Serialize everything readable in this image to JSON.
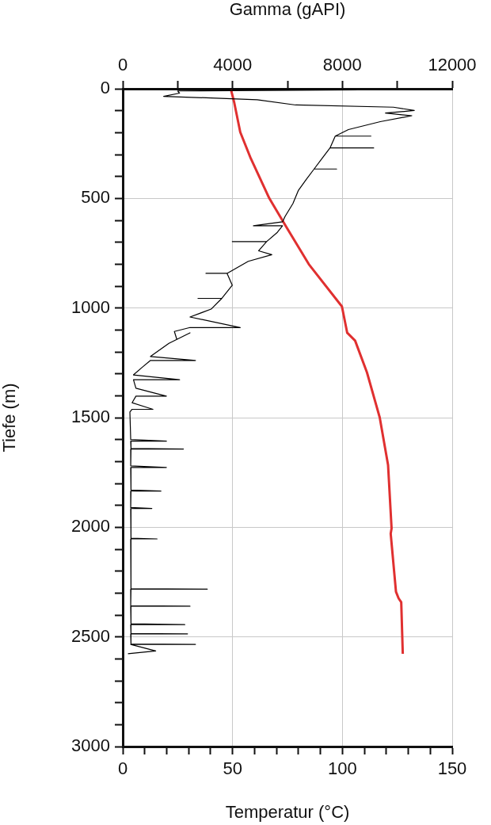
{
  "chart_data": {
    "type": "line",
    "xlabel": "Temperatur (°C)",
    "x2label": "Gamma (gAPI)",
    "ylabel": "Tiefe (m)",
    "xlim": [
      0,
      150
    ],
    "xticks": [
      0,
      {
        "value": 10,
        "label": null
      },
      {
        "value": 20,
        "label": null
      },
      {
        "value": 30,
        "label": null
      },
      {
        "value": 40,
        "label": null
      },
      50,
      {
        "value": 60,
        "label": null
      },
      {
        "value": 70,
        "label": null
      },
      {
        "value": 80,
        "label": null
      },
      {
        "value": 90,
        "label": null
      },
      100,
      {
        "value": 110,
        "label": null
      },
      {
        "value": 120,
        "label": null
      },
      {
        "value": 130,
        "label": null
      },
      {
        "value": 140,
        "label": null
      },
      150
    ],
    "x2lim": [
      0,
      12000
    ],
    "x2ticks": [
      0,
      {
        "value": 2000,
        "label": null
      },
      4000,
      {
        "value": 6000,
        "label": null
      },
      8000,
      {
        "value": 10000,
        "label": null
      },
      12000
    ],
    "ylim": [
      3000,
      0
    ],
    "yticks": [
      0,
      {
        "value": 100,
        "label": null
      },
      {
        "value": 200,
        "label": null
      },
      {
        "value": 300,
        "label": null
      },
      {
        "value": 400,
        "label": null
      },
      500,
      {
        "value": 600,
        "label": null
      },
      {
        "value": 700,
        "label": null
      },
      {
        "value": 800,
        "label": null
      },
      {
        "value": 900,
        "label": null
      },
      1000,
      {
        "value": 1100,
        "label": null
      },
      {
        "value": 1200,
        "label": null
      },
      {
        "value": 1300,
        "label": null
      },
      {
        "value": 1400,
        "label": null
      },
      1500,
      {
        "value": 1600,
        "label": null
      },
      {
        "value": 1700,
        "label": null
      },
      {
        "value": 1800,
        "label": null
      },
      {
        "value": 1900,
        "label": null
      },
      2000,
      {
        "value": 2100,
        "label": null
      },
      {
        "value": 2200,
        "label": null
      },
      {
        "value": 2300,
        "label": null
      },
      {
        "value": 2400,
        "label": null
      },
      2500,
      {
        "value": 2600,
        "label": null
      },
      {
        "value": 2700,
        "label": null
      },
      {
        "value": 2800,
        "label": null
      },
      {
        "value": 2900,
        "label": null
      },
      3000
    ],
    "grid": true,
    "series": [
      {
        "color": "#000000",
        "axis": "x2",
        "x": [
          0,
          8500,
          2000,
          2070,
          1490,
          3220,
          4900,
          6300,
          9860,
          10620,
          9570,
          10530,
          9380,
          8220,
          7740,
          9040,
          7740,
          7550,
          9140,
          7550,
          7260,
          6970,
          7790,
          6970,
          6680,
          6400,
          6200,
          5910,
          5820,
          4760,
          5820,
          5630,
          5240,
          3990,
          5240,
          4950,
          5430,
          4570,
          3800,
          3030,
          3800,
          3990,
          3610,
          2740,
          3610,
          3220,
          2450,
          4280,
          2450,
          1880,
          1970,
          2450,
          1680,
          1010,
          2650,
          1010,
          720,
          390,
          2070,
          390,
          480,
          1590,
          480,
          340,
          1100,
          340,
          260,
          290,
          1590,
          290,
          300,
          2210,
          300,
          290,
          1590,
          290,
          300,
          1390,
          300,
          290,
          1060,
          290,
          300,
          1250,
          290,
          300,
          3080,
          300,
          290,
          2450,
          290,
          300,
          2260,
          290,
          300,
          2360,
          290,
          300,
          2650,
          290,
          1200,
          190
        ],
        "values": [
          0,
          5,
          10,
          20,
          35,
          42,
          50,
          74,
          84,
          99,
          111,
          123,
          150,
          186,
          216,
          216,
          216,
          270,
          270,
          270,
          318,
          366,
          366,
          366,
          414,
          463,
          523,
          583,
          607,
          625,
          625,
          655,
          697,
          697,
          697,
          739,
          757,
          787,
          842,
          842,
          842,
          896,
          956,
          956,
          956,
          1005,
          1041,
          1089,
          1089,
          1107,
          1143,
          1113,
          1161,
          1221,
          1239,
          1239,
          1269,
          1305,
          1327,
          1327,
          1366,
          1402,
          1402,
          1432,
          1462,
          1462,
          1474,
          1600,
          1607,
          1607,
          1640,
          1643,
          1643,
          1720,
          1727,
          1727,
          1830,
          1835,
          1835,
          1910,
          1914,
          1914,
          2050,
          2053,
          2053,
          2280,
          2282,
          2282,
          2358,
          2360,
          2360,
          2440,
          2444,
          2444,
          2484,
          2486,
          2486,
          2532,
          2534,
          2534,
          2564,
          2577
        ]
      },
      {
        "color": "#e03030",
        "x": [
          49.3,
          50.8,
          53.5,
          58.3,
          66.7,
          74.5,
          84.7,
          99.8,
          102.2,
          105.8,
          111.2,
          117.0,
          120.8,
          122.4,
          122.0,
          124.4,
          125.6,
          126.8,
          127.5
        ],
        "values": [
          5,
          65,
          198,
          318,
          499,
          631,
          800,
          993,
          1113,
          1149,
          1294,
          1499,
          1716,
          2005,
          2029,
          2294,
          2324,
          2342,
          2577
        ]
      }
    ]
  }
}
